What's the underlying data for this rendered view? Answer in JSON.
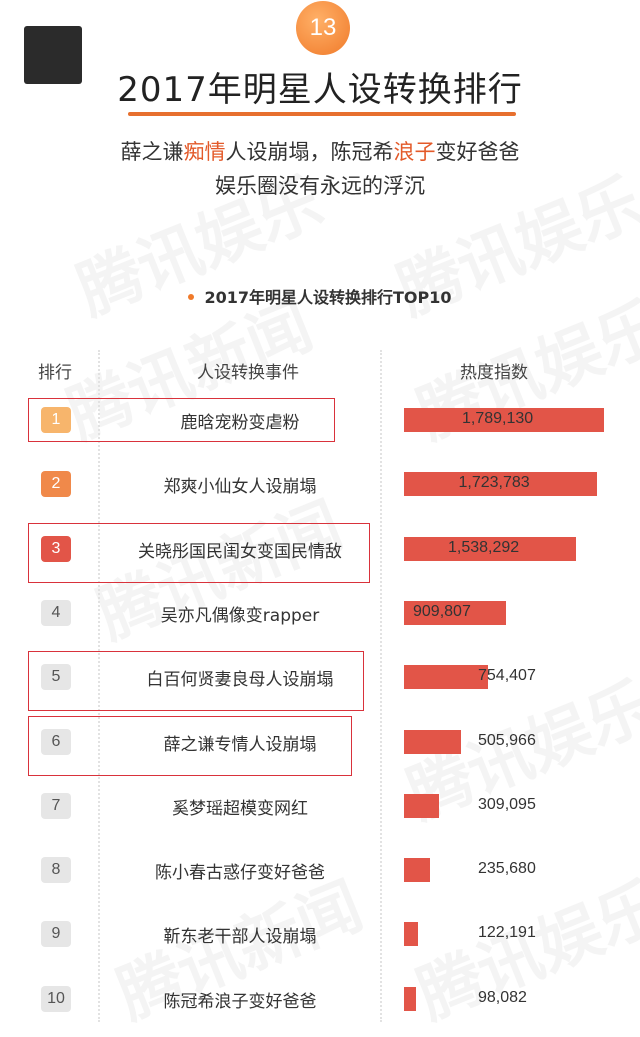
{
  "header": {
    "menu_icon": "hamburger-menu-icon",
    "page_number": "13",
    "title": "2017年明星人设转换排行",
    "subtitle_line1": {
      "p1": "薛之谦",
      "h1": "痴情",
      "p2": "人设崩塌，陈冠希",
      "h2": "浪子",
      "p3": "变好爸爸"
    },
    "subtitle_line2": "娱乐圈没有永远的浮沉",
    "watermark_text": "腾讯娱乐",
    "watermark_text_alt": "腾讯新闻"
  },
  "colors": {
    "accent_orange": "#e76f2e",
    "bar_red": "#e25548",
    "highlight_box": "#d9323b"
  },
  "chart_data": {
    "type": "bar",
    "title": "2017年明星人设转换排行TOP10",
    "columns": {
      "rank": "排行",
      "event": "人设转换事件",
      "heat": "热度指数"
    },
    "rows": [
      {
        "rank": "1",
        "event": "鹿晗宠粉变虐粉",
        "value": 1789130,
        "label": "1,789,130",
        "highlighted": true
      },
      {
        "rank": "2",
        "event": "郑爽小仙女人设崩塌",
        "value": 1723783,
        "label": "1,723,783",
        "highlighted": false
      },
      {
        "rank": "3",
        "event": "关晓彤国民闺女变国民情敌",
        "value": 1538292,
        "label": "1,538,292",
        "highlighted": true
      },
      {
        "rank": "4",
        "event": "吴亦凡偶像变rapper",
        "value": 909807,
        "label": "909,807",
        "highlighted": false
      },
      {
        "rank": "5",
        "event": "白百何贤妻良母人设崩塌",
        "value": 754407,
        "label": "754,407",
        "highlighted": true
      },
      {
        "rank": "6",
        "event": "薛之谦专情人设崩塌",
        "value": 505966,
        "label": "505,966",
        "highlighted": true
      },
      {
        "rank": "7",
        "event": "奚梦瑶超模变网红",
        "value": 309095,
        "label": "309,095",
        "highlighted": false
      },
      {
        "rank": "8",
        "event": "陈小春古惑仔变好爸爸",
        "value": 235680,
        "label": "235,680",
        "highlighted": false
      },
      {
        "rank": "9",
        "event": "靳东老干部人设崩塌",
        "value": 122191,
        "label": "122,191",
        "highlighted": false
      },
      {
        "rank": "10",
        "event": "陈冠希浪子变好爸爸",
        "value": 98082,
        "label": "98,082",
        "highlighted": false
      }
    ],
    "xlim": [
      0,
      1789130
    ],
    "rank_badge_colors": [
      "#f7b56c",
      "#f0894a",
      "#e25548",
      "#e6e6e6",
      "#e6e6e6",
      "#e6e6e6",
      "#e6e6e6",
      "#e6e6e6",
      "#e6e6e6",
      "#e6e6e6"
    ],
    "rank_text_colors": [
      "#ffffff",
      "#ffffff",
      "#ffffff",
      "#555555",
      "#555555",
      "#555555",
      "#555555",
      "#555555",
      "#555555",
      "#555555"
    ]
  }
}
